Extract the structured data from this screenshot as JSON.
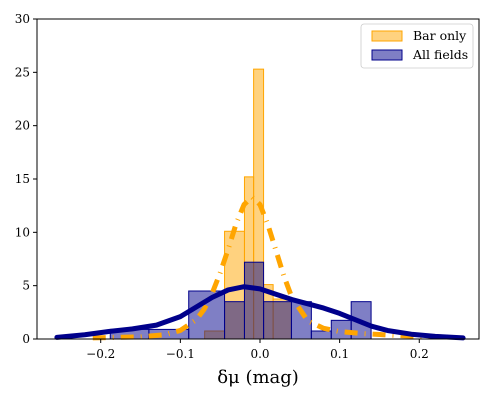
{
  "chart_data": {
    "type": "bar",
    "xlabel": "δμ (mag)",
    "ylabel": "",
    "xlim": [
      -0.28,
      0.275
    ],
    "ylim": [
      0,
      30
    ],
    "xticks": [
      -0.2,
      -0.1,
      0.0,
      0.1,
      0.2
    ],
    "xtick_labels": [
      "−0.2",
      "−0.1",
      "0.0",
      "0.1",
      "0.2"
    ],
    "yticks": [
      0,
      5,
      10,
      15,
      20,
      25,
      30
    ],
    "ytick_labels": [
      "0",
      "5",
      "10",
      "15",
      "20",
      "25",
      "30"
    ],
    "grid": false,
    "legend_position": "top-right",
    "series": [
      {
        "name": "Bar only",
        "kind": "histogram",
        "color": "#ffa500",
        "bins": [
          {
            "x0": -0.0695,
            "x1": -0.0445,
            "value": 0.75
          },
          {
            "x0": -0.0445,
            "x1": -0.0195,
            "value": 10.1
          },
          {
            "x0": -0.0195,
            "x1": -0.008,
            "value": 15.2
          },
          {
            "x0": -0.008,
            "x1": 0.0045,
            "value": 25.3
          },
          {
            "x0": 0.0045,
            "x1": 0.0165,
            "value": 5.1
          },
          {
            "x0": 0.0165,
            "x1": 0.0395,
            "value": 3.75
          }
        ]
      },
      {
        "name": "All fields",
        "kind": "histogram",
        "color": "#00008b",
        "bins": [
          {
            "x0": -0.188,
            "x1": -0.1395,
            "value": 0.9
          },
          {
            "x0": -0.1395,
            "x1": -0.0895,
            "value": 0.9
          },
          {
            "x0": -0.0895,
            "x1": -0.0445,
            "value": 4.5
          },
          {
            "x0": -0.0445,
            "x1": -0.0195,
            "value": 3.5
          },
          {
            "x0": -0.0195,
            "x1": 0.0045,
            "value": 7.2
          },
          {
            "x0": 0.0045,
            "x1": 0.0395,
            "value": 3.5
          },
          {
            "x0": 0.0395,
            "x1": 0.0645,
            "value": 3.5
          },
          {
            "x0": 0.0645,
            "x1": 0.0895,
            "value": 0.75
          },
          {
            "x0": 0.0895,
            "x1": 0.1145,
            "value": 1.75
          },
          {
            "x0": 0.1145,
            "x1": 0.1395,
            "value": 3.5
          }
        ]
      }
    ],
    "curves": [
      {
        "series": "Bar only",
        "style": "dash-dot",
        "color": "#ffa500",
        "x": [
          -0.21,
          -0.15,
          -0.12,
          -0.1,
          -0.08,
          -0.07,
          -0.06,
          -0.05,
          -0.04,
          -0.03,
          -0.02,
          -0.01,
          0.0,
          0.01,
          0.02,
          0.03,
          0.04,
          0.06,
          0.08,
          0.1,
          0.13,
          0.18,
          0.23
        ],
        "y": [
          0.1,
          0.2,
          0.4,
          0.8,
          1.8,
          2.8,
          4.3,
          6.2,
          8.4,
          10.8,
          12.6,
          13.3,
          12.6,
          10.7,
          8.3,
          5.9,
          3.9,
          1.7,
          1.0,
          0.7,
          0.5,
          0.3,
          0.2
        ]
      },
      {
        "series": "All fields",
        "style": "solid",
        "color": "#00008b",
        "x": [
          -0.255,
          -0.22,
          -0.19,
          -0.16,
          -0.13,
          -0.1,
          -0.08,
          -0.06,
          -0.04,
          -0.02,
          0.0,
          0.02,
          0.04,
          0.06,
          0.08,
          0.1,
          0.12,
          0.14,
          0.16,
          0.19,
          0.22,
          0.255
        ],
        "y": [
          0.15,
          0.4,
          0.7,
          0.95,
          1.3,
          2.1,
          3.0,
          3.9,
          4.6,
          4.9,
          4.7,
          4.2,
          3.7,
          3.3,
          2.9,
          2.4,
          1.8,
          1.2,
          0.8,
          0.45,
          0.25,
          0.1
        ]
      }
    ]
  }
}
